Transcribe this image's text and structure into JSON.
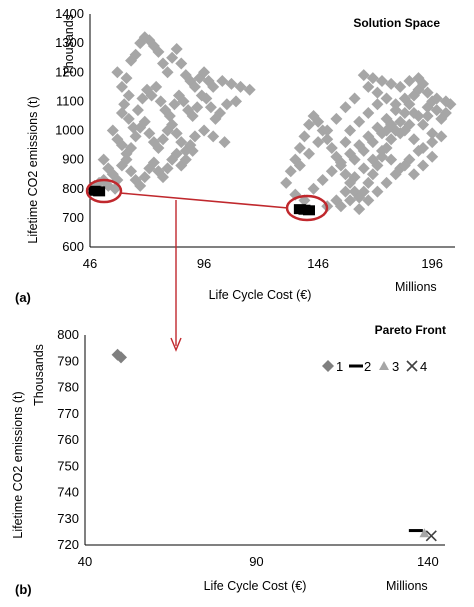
{
  "chart_data": [
    {
      "type": "scatter",
      "title": "Solution Space",
      "panel_label": "(a)",
      "xlabel": "Life Cycle Cost (€)",
      "x_units": "Millions",
      "ylabel": "Lifetime CO2 emissions (t)",
      "y_units": "Thousands",
      "xlim": [
        46,
        206
      ],
      "ylim": [
        600,
        1400
      ],
      "xticks": [
        46,
        96,
        146,
        196
      ],
      "yticks": [
        600,
        700,
        800,
        900,
        1000,
        1100,
        1200,
        1300,
        1400
      ],
      "grid": false,
      "colors": {
        "solutions": "#a6a6a6",
        "highlight": "#000000",
        "circle": "#c0282d"
      },
      "series": [
        {
          "role": "solution-space",
          "marker": "diamond",
          "points": [
            [
              58,
              1200
            ],
            [
              60,
              1150
            ],
            [
              62,
              1180
            ],
            [
              64,
              1240
            ],
            [
              66,
              1260
            ],
            [
              68,
              1300
            ],
            [
              70,
              1320
            ],
            [
              72,
              1310
            ],
            [
              74,
              1290
            ],
            [
              76,
              1270
            ],
            [
              78,
              1230
            ],
            [
              80,
              1200
            ],
            [
              82,
              1250
            ],
            [
              84,
              1280
            ],
            [
              86,
              1230
            ],
            [
              88,
              1190
            ],
            [
              90,
              1170
            ],
            [
              92,
              1150
            ],
            [
              94,
              1180
            ],
            [
              96,
              1200
            ],
            [
              98,
              1170
            ],
            [
              100,
              1150
            ],
            [
              104,
              1170
            ],
            [
              108,
              1160
            ],
            [
              112,
              1150
            ],
            [
              116,
              1140
            ],
            [
              61,
              1090
            ],
            [
              63,
              1040
            ],
            [
              65,
              1010
            ],
            [
              67,
              1070
            ],
            [
              69,
              1110
            ],
            [
              71,
              1140
            ],
            [
              73,
              1120
            ],
            [
              75,
              1150
            ],
            [
              77,
              1100
            ],
            [
              79,
              1070
            ],
            [
              81,
              1050
            ],
            [
              83,
              1090
            ],
            [
              85,
              1120
            ],
            [
              87,
              1100
            ],
            [
              89,
              1070
            ],
            [
              91,
              1050
            ],
            [
              93,
              1080
            ],
            [
              95,
              1120
            ],
            [
              97,
              1110
            ],
            [
              99,
              1080
            ],
            [
              101,
              1040
            ],
            [
              103,
              1060
            ],
            [
              106,
              1090
            ],
            [
              110,
              1100
            ],
            [
              56,
              1000
            ],
            [
              58,
              970
            ],
            [
              60,
              950
            ],
            [
              62,
              920
            ],
            [
              64,
              940
            ],
            [
              66,
              980
            ],
            [
              68,
              1010
            ],
            [
              70,
              1030
            ],
            [
              72,
              990
            ],
            [
              74,
              960
            ],
            [
              76,
              940
            ],
            [
              78,
              970
            ],
            [
              80,
              1000
            ],
            [
              82,
              1020
            ],
            [
              84,
              990
            ],
            [
              86,
              960
            ],
            [
              88,
              930
            ],
            [
              90,
              950
            ],
            [
              92,
              980
            ],
            [
              96,
              1000
            ],
            [
              100,
              980
            ],
            [
              105,
              960
            ],
            [
              52,
              900
            ],
            [
              54,
              870
            ],
            [
              56,
              850
            ],
            [
              58,
              830
            ],
            [
              60,
              880
            ],
            [
              62,
              900
            ],
            [
              64,
              860
            ],
            [
              66,
              830
            ],
            [
              68,
              810
            ],
            [
              70,
              840
            ],
            [
              72,
              870
            ],
            [
              74,
              890
            ],
            [
              76,
              860
            ],
            [
              78,
              840
            ],
            [
              80,
              870
            ],
            [
              82,
              900
            ],
            [
              84,
              920
            ],
            [
              86,
              880
            ],
            [
              52,
              830
            ],
            [
              54,
              810
            ],
            [
              57,
              800
            ],
            [
              48,
              810
            ],
            [
              50,
              820
            ],
            [
              88,
              900
            ],
            [
              91,
              930
            ],
            [
              60,
              1060
            ],
            [
              63,
              1120
            ],
            [
              132,
              820
            ],
            [
              134,
              860
            ],
            [
              136,
              900
            ],
            [
              138,
              940
            ],
            [
              140,
              980
            ],
            [
              142,
              1020
            ],
            [
              144,
              1050
            ],
            [
              146,
              1030
            ],
            [
              148,
              1000
            ],
            [
              150,
              970
            ],
            [
              152,
              940
            ],
            [
              154,
              910
            ],
            [
              156,
              880
            ],
            [
              158,
              850
            ],
            [
              160,
              820
            ],
            [
              162,
              790
            ],
            [
              164,
              770
            ],
            [
              166,
              790
            ],
            [
              168,
              820
            ],
            [
              170,
              850
            ],
            [
              172,
              880
            ],
            [
              174,
              910
            ],
            [
              176,
              940
            ],
            [
              178,
              970
            ],
            [
              180,
              1000
            ],
            [
              182,
              1030
            ],
            [
              184,
              1060
            ],
            [
              186,
              1090
            ],
            [
              188,
              1120
            ],
            [
              190,
              1140
            ],
            [
              192,
              1160
            ],
            [
              194,
              1130
            ],
            [
              196,
              1100
            ],
            [
              198,
              1070
            ],
            [
              200,
              1040
            ],
            [
              202,
              1060
            ],
            [
              204,
              1090
            ],
            [
              166,
              1190
            ],
            [
              170,
              1180
            ],
            [
              174,
              1170
            ],
            [
              178,
              1160
            ],
            [
              182,
              1150
            ],
            [
              186,
              1170
            ],
            [
              190,
              1180
            ],
            [
              168,
              1150
            ],
            [
              172,
              1130
            ],
            [
              176,
              1110
            ],
            [
              180,
              1090
            ],
            [
              184,
              1110
            ],
            [
              188,
              1060
            ],
            [
              192,
              1020
            ],
            [
              196,
              990
            ],
            [
              200,
              980
            ],
            [
              136,
              780
            ],
            [
              140,
              760
            ],
            [
              144,
              800
            ],
            [
              148,
              830
            ],
            [
              152,
              860
            ],
            [
              156,
              890
            ],
            [
              160,
              920
            ],
            [
              164,
              950
            ],
            [
              168,
              980
            ],
            [
              172,
              1010
            ],
            [
              176,
              1040
            ],
            [
              180,
              1070
            ],
            [
              184,
              1000
            ],
            [
              188,
              970
            ],
            [
              192,
              940
            ],
            [
              196,
              960
            ],
            [
              150,
              740
            ],
            [
              154,
              760
            ],
            [
              158,
              790
            ],
            [
              162,
              840
            ],
            [
              166,
              870
            ],
            [
              170,
              900
            ],
            [
              174,
              930
            ],
            [
              178,
              900
            ],
            [
              182,
              870
            ],
            [
              186,
              900
            ],
            [
              190,
              930
            ],
            [
              194,
              1050
            ],
            [
              138,
              880
            ],
            [
              142,
              920
            ],
            [
              146,
              960
            ],
            [
              150,
              1000
            ],
            [
              154,
              1040
            ],
            [
              158,
              1080
            ],
            [
              162,
              1110
            ],
            [
              160,
              1000
            ],
            [
              164,
              1030
            ],
            [
              168,
              1060
            ],
            [
              172,
              1090
            ],
            [
              176,
              1000
            ],
            [
              158,
              960
            ],
            [
              162,
              900
            ],
            [
              166,
              930
            ],
            [
              170,
              960
            ],
            [
              174,
              990
            ],
            [
              178,
              1020
            ],
            [
              182,
              990
            ],
            [
              186,
              1020
            ],
            [
              190,
              1050
            ],
            [
              194,
              1080
            ],
            [
              198,
              1110
            ],
            [
              202,
              1100
            ],
            [
              156,
              740
            ],
            [
              160,
              760
            ],
            [
              164,
              730
            ],
            [
              168,
              760
            ],
            [
              172,
              790
            ],
            [
              176,
              820
            ],
            [
              180,
              850
            ],
            [
              184,
              880
            ],
            [
              188,
              850
            ],
            [
              192,
              880
            ],
            [
              196,
              910
            ]
          ]
        },
        {
          "role": "pareto-highlight",
          "marker": "square",
          "points": [
            [
              48,
              793
            ],
            [
              50,
              791
            ],
            [
              138,
              730
            ],
            [
              140,
              728
            ],
            [
              142,
              726
            ]
          ]
        }
      ],
      "annotations": [
        "pareto-circle-left",
        "pareto-circle-right",
        "connector-line",
        "down-arrow"
      ]
    },
    {
      "type": "scatter",
      "title": "Pareto Front",
      "panel_label": "(b)",
      "xlabel": "Life Cycle Cost (€)",
      "x_units": "Millions",
      "ylabel": "Lifetime CO2 emissions (t)",
      "y_units": "Thousands",
      "xlim": [
        40,
        145
      ],
      "ylim": [
        720,
        800
      ],
      "xticks": [
        40,
        90,
        140
      ],
      "yticks": [
        720,
        730,
        740,
        750,
        760,
        770,
        780,
        790,
        800
      ],
      "grid": false,
      "legend_position": "right",
      "series": [
        {
          "name": "1",
          "marker": "diamond",
          "color": "#7f7f7f",
          "points": [
            [
              49.5,
              792.5
            ],
            [
              50.5,
              791.5
            ]
          ]
        },
        {
          "name": "2",
          "marker": "dash",
          "color": "#000000",
          "points": [
            [
              136.5,
              725.5
            ]
          ]
        },
        {
          "name": "3",
          "marker": "triangle",
          "color": "#a6a6a6",
          "points": [
            [
              139,
              724.5
            ]
          ]
        },
        {
          "name": "4",
          "marker": "x",
          "color": "#404040",
          "points": [
            [
              141,
              723.5
            ]
          ]
        }
      ]
    }
  ]
}
